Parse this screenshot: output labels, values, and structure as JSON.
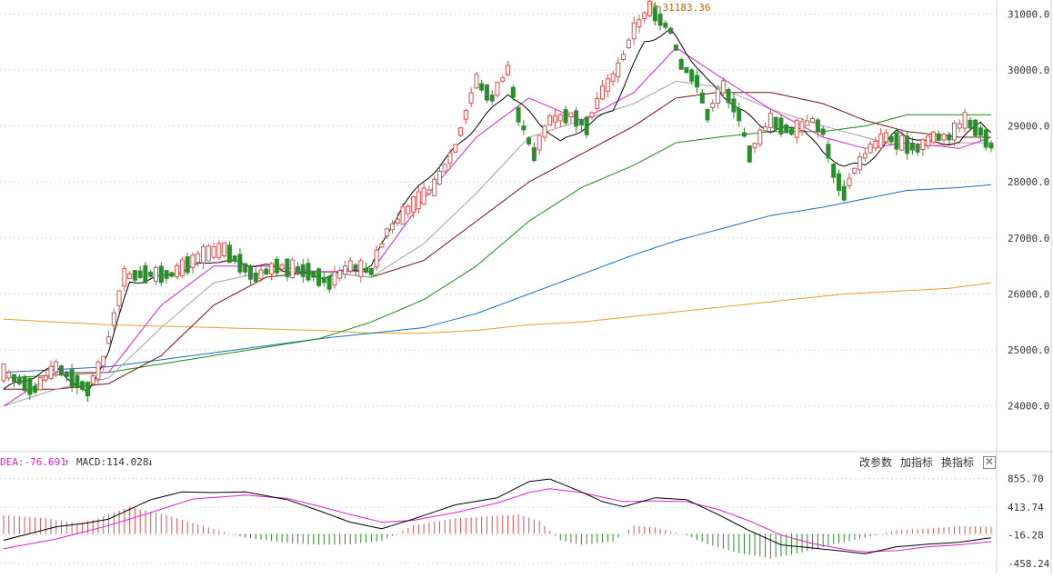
{
  "toolbar": {
    "change_params": "改参数",
    "add_indicator": "加指标",
    "switch_indicator": "换指标",
    "close_glyph": "✕"
  },
  "indicator_legend": {
    "dea": "DEA:-76.691",
    "dea_arrow": "↑",
    "macd": "MACD:114.028",
    "macd_arrow": "↓"
  },
  "colors": {
    "up": "#d9534f",
    "down": "#2e8b2e",
    "ma5": "#000000",
    "ma10": "#e020d0",
    "ma20": "#a0a0a0",
    "ma30": "#7a1010",
    "ma60": "#1a8a1a",
    "ma120": "#1a6fc0",
    "ma250": "#e8a020",
    "dif": "#000000",
    "dea": "#e020d0"
  },
  "chart_data": [
    {
      "type": "candlestick",
      "annotations": [
        {
          "text": "31183.36",
          "x_index": 123,
          "value": 31183.36
        }
      ],
      "y_ticks": [
        24000,
        25000,
        26000,
        27000,
        28000,
        29000,
        30000,
        31000
      ],
      "y_tick_labels": [
        "24000.0",
        "25000.0",
        "26000.0",
        "27000.0",
        "28000.0",
        "29000.0",
        "30000.0",
        "31000.0"
      ],
      "ylim": [
        23200,
        31250
      ],
      "grid": true,
      "ma_anchors": {
        "ma5": [
          [
            0,
            24300
          ],
          [
            10,
            24700
          ],
          [
            16,
            24200
          ],
          [
            20,
            25000
          ],
          [
            24,
            26200
          ],
          [
            30,
            26300
          ],
          [
            40,
            26600
          ],
          [
            50,
            26500
          ],
          [
            60,
            26300
          ],
          [
            70,
            26500
          ],
          [
            76,
            27600
          ],
          [
            86,
            28600
          ],
          [
            96,
            29600
          ],
          [
            106,
            28700
          ],
          [
            116,
            29300
          ],
          [
            122,
            30500
          ],
          [
            127,
            30700
          ],
          [
            134,
            29800
          ],
          [
            140,
            29300
          ],
          [
            146,
            28900
          ],
          [
            152,
            29000
          ],
          [
            156,
            28500
          ],
          [
            160,
            28300
          ],
          [
            164,
            28300
          ],
          [
            170,
            28900
          ],
          [
            176,
            28700
          ],
          [
            182,
            28700
          ],
          [
            186,
            29100
          ],
          [
            188,
            28900
          ]
        ],
        "ma10": [
          [
            0,
            24000
          ],
          [
            10,
            24600
          ],
          [
            20,
            24600
          ],
          [
            30,
            25800
          ],
          [
            40,
            26500
          ],
          [
            50,
            26500
          ],
          [
            60,
            26400
          ],
          [
            70,
            26400
          ],
          [
            80,
            27700
          ],
          [
            90,
            28800
          ],
          [
            100,
            29500
          ],
          [
            110,
            29100
          ],
          [
            120,
            29600
          ],
          [
            128,
            30400
          ],
          [
            136,
            29900
          ],
          [
            146,
            29300
          ],
          [
            156,
            28800
          ],
          [
            164,
            28600
          ],
          [
            172,
            28700
          ],
          [
            182,
            28600
          ],
          [
            188,
            28800
          ]
        ],
        "ma20": [
          [
            0,
            24000
          ],
          [
            10,
            24300
          ],
          [
            20,
            24500
          ],
          [
            30,
            25400
          ],
          [
            40,
            26200
          ],
          [
            50,
            26400
          ],
          [
            60,
            26400
          ],
          [
            70,
            26300
          ],
          [
            80,
            26900
          ],
          [
            90,
            27800
          ],
          [
            100,
            28800
          ],
          [
            110,
            29100
          ],
          [
            120,
            29400
          ],
          [
            128,
            29800
          ],
          [
            136,
            29700
          ],
          [
            146,
            29300
          ],
          [
            156,
            29000
          ],
          [
            164,
            28800
          ],
          [
            172,
            28600
          ],
          [
            182,
            28700
          ],
          [
            188,
            28700
          ]
        ],
        "ma30": [
          [
            0,
            24300
          ],
          [
            10,
            24300
          ],
          [
            20,
            24400
          ],
          [
            30,
            24900
          ],
          [
            40,
            25800
          ],
          [
            50,
            26300
          ],
          [
            60,
            26400
          ],
          [
            70,
            26300
          ],
          [
            80,
            26600
          ],
          [
            90,
            27300
          ],
          [
            100,
            28000
          ],
          [
            110,
            28500
          ],
          [
            120,
            29000
          ],
          [
            128,
            29500
          ],
          [
            136,
            29600
          ],
          [
            146,
            29600
          ],
          [
            156,
            29400
          ],
          [
            164,
            29100
          ],
          [
            172,
            28900
          ],
          [
            182,
            28800
          ],
          [
            188,
            28800
          ]
        ],
        "ma60": [
          [
            0,
            24500
          ],
          [
            20,
            24600
          ],
          [
            40,
            24900
          ],
          [
            60,
            25200
          ],
          [
            70,
            25500
          ],
          [
            80,
            25900
          ],
          [
            90,
            26500
          ],
          [
            100,
            27300
          ],
          [
            110,
            27900
          ],
          [
            120,
            28300
          ],
          [
            128,
            28700
          ],
          [
            136,
            28800
          ],
          [
            146,
            28900
          ],
          [
            156,
            28900
          ],
          [
            164,
            29000
          ],
          [
            172,
            29200
          ],
          [
            182,
            29200
          ],
          [
            188,
            29200
          ]
        ],
        "ma120": [
          [
            0,
            24600
          ],
          [
            20,
            24700
          ],
          [
            40,
            24950
          ],
          [
            60,
            25200
          ],
          [
            70,
            25300
          ],
          [
            80,
            25400
          ],
          [
            90,
            25650
          ],
          [
            100,
            26000
          ],
          [
            110,
            26350
          ],
          [
            120,
            26700
          ],
          [
            128,
            26950
          ],
          [
            136,
            27150
          ],
          [
            146,
            27400
          ],
          [
            156,
            27550
          ],
          [
            164,
            27700
          ],
          [
            172,
            27850
          ],
          [
            182,
            27900
          ],
          [
            188,
            27950
          ]
        ],
        "ma250": [
          [
            0,
            25550
          ],
          [
            20,
            25450
          ],
          [
            40,
            25400
          ],
          [
            60,
            25350
          ],
          [
            70,
            25300
          ],
          [
            80,
            25300
          ],
          [
            90,
            25350
          ],
          [
            100,
            25450
          ],
          [
            110,
            25500
          ],
          [
            120,
            25600
          ],
          [
            130,
            25700
          ],
          [
            140,
            25800
          ],
          [
            150,
            25900
          ],
          [
            160,
            26000
          ],
          [
            170,
            26050
          ],
          [
            180,
            26100
          ],
          [
            188,
            26200
          ]
        ]
      },
      "ohlc_anchors": [
        [
          0,
          24600
        ],
        [
          6,
          24300
        ],
        [
          10,
          24700
        ],
        [
          16,
          24300
        ],
        [
          19,
          24800
        ],
        [
          23,
          26300
        ],
        [
          26,
          26350
        ],
        [
          32,
          26350
        ],
        [
          38,
          26700
        ],
        [
          42,
          26800
        ],
        [
          48,
          26300
        ],
        [
          52,
          26500
        ],
        [
          58,
          26400
        ],
        [
          62,
          26200
        ],
        [
          66,
          26500
        ],
        [
          70,
          26400
        ],
        [
          73,
          27100
        ],
        [
          78,
          27600
        ],
        [
          82,
          27900
        ],
        [
          86,
          28600
        ],
        [
          90,
          29800
        ],
        [
          93,
          29500
        ],
        [
          96,
          30000
        ],
        [
          98,
          29200
        ],
        [
          101,
          28500
        ],
        [
          104,
          29100
        ],
        [
          108,
          29200
        ],
        [
          111,
          29000
        ],
        [
          114,
          29600
        ],
        [
          117,
          30000
        ],
        [
          120,
          30700
        ],
        [
          123,
          31100
        ],
        [
          127,
          30700
        ],
        [
          129,
          30100
        ],
        [
          132,
          29800
        ],
        [
          134,
          29200
        ],
        [
          137,
          29700
        ],
        [
          140,
          29200
        ],
        [
          142,
          28500
        ],
        [
          146,
          29100
        ],
        [
          150,
          28900
        ],
        [
          154,
          29100
        ],
        [
          156,
          28900
        ],
        [
          158,
          28200
        ],
        [
          160,
          27800
        ],
        [
          162,
          28200
        ],
        [
          165,
          28600
        ],
        [
          168,
          28800
        ],
        [
          171,
          28700
        ],
        [
          174,
          28600
        ],
        [
          177,
          28800
        ],
        [
          180,
          28800
        ],
        [
          183,
          29100
        ],
        [
          186,
          28900
        ],
        [
          188,
          28650
        ]
      ]
    },
    {
      "type": "macd",
      "y_ticks": [
        -458.24,
        -16.28,
        413.74,
        855.7
      ],
      "y_tick_labels": [
        "-458.24",
        "-16.28",
        "413.74",
        "855.70"
      ],
      "ylim": [
        -600,
        950
      ],
      "dif_anchors": [
        [
          0,
          -100
        ],
        [
          10,
          110
        ],
        [
          16,
          170
        ],
        [
          20,
          230
        ],
        [
          28,
          530
        ],
        [
          34,
          650
        ],
        [
          40,
          640
        ],
        [
          46,
          650
        ],
        [
          54,
          530
        ],
        [
          60,
          360
        ],
        [
          66,
          180
        ],
        [
          72,
          80
        ],
        [
          78,
          230
        ],
        [
          86,
          450
        ],
        [
          94,
          560
        ],
        [
          100,
          810
        ],
        [
          104,
          850
        ],
        [
          110,
          650
        ],
        [
          114,
          500
        ],
        [
          118,
          420
        ],
        [
          124,
          560
        ],
        [
          130,
          530
        ],
        [
          136,
          300
        ],
        [
          142,
          50
        ],
        [
          148,
          -170
        ],
        [
          154,
          -220
        ],
        [
          160,
          -270
        ],
        [
          164,
          -310
        ],
        [
          170,
          -200
        ],
        [
          176,
          -160
        ],
        [
          182,
          -130
        ],
        [
          188,
          -60
        ]
      ],
      "dea_anchors": [
        [
          0,
          -230
        ],
        [
          10,
          -80
        ],
        [
          20,
          130
        ],
        [
          28,
          330
        ],
        [
          36,
          540
        ],
        [
          46,
          600
        ],
        [
          54,
          550
        ],
        [
          60,
          430
        ],
        [
          66,
          300
        ],
        [
          72,
          180
        ],
        [
          78,
          210
        ],
        [
          86,
          330
        ],
        [
          94,
          480
        ],
        [
          100,
          640
        ],
        [
          104,
          700
        ],
        [
          110,
          640
        ],
        [
          118,
          500
        ],
        [
          124,
          510
        ],
        [
          130,
          500
        ],
        [
          136,
          380
        ],
        [
          142,
          200
        ],
        [
          148,
          -20
        ],
        [
          154,
          -150
        ],
        [
          160,
          -240
        ],
        [
          164,
          -280
        ],
        [
          170,
          -260
        ],
        [
          176,
          -200
        ],
        [
          182,
          -170
        ],
        [
          188,
          -120
        ]
      ],
      "hist_anchors": [
        [
          0,
          290
        ],
        [
          8,
          240
        ],
        [
          14,
          160
        ],
        [
          18,
          240
        ],
        [
          24,
          420
        ],
        [
          30,
          310
        ],
        [
          38,
          120
        ],
        [
          46,
          -60
        ],
        [
          54,
          -140
        ],
        [
          60,
          -170
        ],
        [
          66,
          -160
        ],
        [
          72,
          -110
        ],
        [
          78,
          130
        ],
        [
          86,
          240
        ],
        [
          94,
          280
        ],
        [
          98,
          300
        ],
        [
          102,
          200
        ],
        [
          106,
          -100
        ],
        [
          110,
          -170
        ],
        [
          116,
          -120
        ],
        [
          120,
          130
        ],
        [
          124,
          100
        ],
        [
          130,
          -20
        ],
        [
          134,
          -160
        ],
        [
          140,
          -300
        ],
        [
          146,
          -380
        ],
        [
          152,
          -290
        ],
        [
          158,
          -160
        ],
        [
          164,
          -60
        ],
        [
          170,
          60
        ],
        [
          176,
          80
        ],
        [
          182,
          120
        ],
        [
          188,
          110
        ]
      ]
    }
  ]
}
